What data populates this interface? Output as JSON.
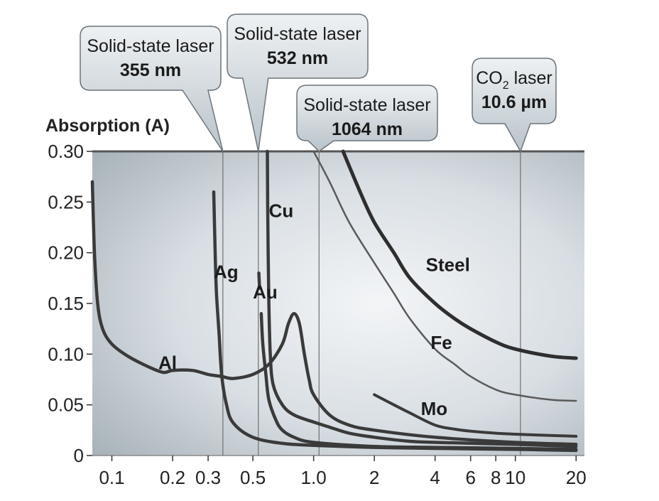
{
  "chart_data": {
    "type": "line",
    "ylabel": "Absorption (A)",
    "xlabel": "",
    "x_scale": "log",
    "xlim": [
      0.08,
      22
    ],
    "ylim": [
      0,
      0.3
    ],
    "x_ticks": [
      {
        "value": 0.1,
        "label": "0.1"
      },
      {
        "value": 0.2,
        "label": "0.2"
      },
      {
        "value": 0.3,
        "label": "0.3"
      },
      {
        "value": 0.5,
        "label": "0.5"
      },
      {
        "value": 1.0,
        "label": "1.0"
      },
      {
        "value": 2,
        "label": "2"
      },
      {
        "value": 4,
        "label": "4"
      },
      {
        "value": 6,
        "label": "6"
      },
      {
        "value": 8,
        "label": "8"
      },
      {
        "value": 10,
        "label": "10"
      },
      {
        "value": 20,
        "label": "20"
      }
    ],
    "y_ticks": [
      {
        "value": 0.3,
        "label": "0.30"
      },
      {
        "value": 0.25,
        "label": "0.25"
      },
      {
        "value": 0.2,
        "label": "0.20"
      },
      {
        "value": 0.15,
        "label": "0.15"
      },
      {
        "value": 0.1,
        "label": "0.10"
      },
      {
        "value": 0.05,
        "label": "0.05"
      },
      {
        "value": 0,
        "label": "0"
      }
    ],
    "series": [
      {
        "name": "Al",
        "stroke": "#3a3a3a",
        "width": 4.5,
        "points": [
          [
            0.08,
            0.27
          ],
          [
            0.082,
            0.2
          ],
          [
            0.085,
            0.15
          ],
          [
            0.09,
            0.125
          ],
          [
            0.1,
            0.11
          ],
          [
            0.12,
            0.098
          ],
          [
            0.15,
            0.088
          ],
          [
            0.18,
            0.082
          ],
          [
            0.2,
            0.084
          ],
          [
            0.25,
            0.084
          ],
          [
            0.3,
            0.08
          ],
          [
            0.35,
            0.078
          ],
          [
            0.4,
            0.076
          ],
          [
            0.5,
            0.08
          ],
          [
            0.6,
            0.09
          ],
          [
            0.7,
            0.11
          ],
          [
            0.75,
            0.13
          ],
          [
            0.8,
            0.14
          ],
          [
            0.85,
            0.13
          ],
          [
            0.9,
            0.1
          ],
          [
            0.95,
            0.075
          ],
          [
            1.0,
            0.06
          ],
          [
            1.2,
            0.04
          ],
          [
            1.5,
            0.03
          ],
          [
            2,
            0.025
          ],
          [
            4,
            0.018
          ],
          [
            10,
            0.013
          ],
          [
            20,
            0.011
          ]
        ]
      },
      {
        "name": "Ag",
        "stroke": "#3a3a3a",
        "width": 4.5,
        "points": [
          [
            0.32,
            0.26
          ],
          [
            0.325,
            0.2
          ],
          [
            0.33,
            0.16
          ],
          [
            0.34,
            0.12
          ],
          [
            0.35,
            0.08
          ],
          [
            0.37,
            0.05
          ],
          [
            0.4,
            0.032
          ],
          [
            0.5,
            0.018
          ],
          [
            0.7,
            0.012
          ],
          [
            1.0,
            0.01
          ],
          [
            2,
            0.008
          ],
          [
            4,
            0.007
          ],
          [
            10,
            0.006
          ],
          [
            20,
            0.005
          ]
        ]
      },
      {
        "name": "Au",
        "stroke": "#3a3a3a",
        "width": 4.5,
        "points": [
          [
            0.55,
            0.14
          ],
          [
            0.56,
            0.11
          ],
          [
            0.58,
            0.08
          ],
          [
            0.6,
            0.055
          ],
          [
            0.65,
            0.035
          ],
          [
            0.7,
            0.025
          ],
          [
            0.8,
            0.018
          ],
          [
            1.0,
            0.013
          ],
          [
            2,
            0.009
          ],
          [
            4,
            0.008
          ],
          [
            10,
            0.007
          ],
          [
            20,
            0.006
          ]
        ]
      },
      {
        "name": "Au-upper",
        "stroke": "#3a3a3a",
        "width": 4.5,
        "points": [
          [
            0.535,
            0.18
          ],
          [
            0.54,
            0.165
          ]
        ]
      },
      {
        "name": "Cu",
        "stroke": "#3a3a3a",
        "width": 4.5,
        "points": [
          [
            0.59,
            0.3
          ],
          [
            0.592,
            0.25
          ],
          [
            0.595,
            0.2
          ],
          [
            0.6,
            0.15
          ],
          [
            0.61,
            0.1
          ],
          [
            0.63,
            0.07
          ],
          [
            0.7,
            0.05
          ],
          [
            0.8,
            0.04
          ],
          [
            1.0,
            0.033
          ],
          [
            1.2,
            0.028
          ],
          [
            1.5,
            0.022
          ],
          [
            2,
            0.018
          ],
          [
            3,
            0.014
          ],
          [
            4,
            0.013
          ],
          [
            10,
            0.011
          ],
          [
            20,
            0.009
          ]
        ]
      },
      {
        "name": "Steel",
        "stroke": "#2e2e2e",
        "width": 5,
        "points": [
          [
            1.4,
            0.3
          ],
          [
            1.7,
            0.26
          ],
          [
            2,
            0.23
          ],
          [
            2.5,
            0.2
          ],
          [
            3,
            0.175
          ],
          [
            4,
            0.15
          ],
          [
            5,
            0.135
          ],
          [
            6,
            0.125
          ],
          [
            8,
            0.112
          ],
          [
            10,
            0.105
          ],
          [
            15,
            0.098
          ],
          [
            20,
            0.096
          ]
        ]
      },
      {
        "name": "Fe",
        "stroke": "#5a5a5a",
        "width": 2.5,
        "points": [
          [
            1.0,
            0.3
          ],
          [
            1.2,
            0.27
          ],
          [
            1.5,
            0.23
          ],
          [
            2,
            0.19
          ],
          [
            2.5,
            0.16
          ],
          [
            3,
            0.135
          ],
          [
            4,
            0.105
          ],
          [
            5,
            0.09
          ],
          [
            6,
            0.078
          ],
          [
            8,
            0.065
          ],
          [
            10,
            0.06
          ],
          [
            15,
            0.055
          ],
          [
            20,
            0.054
          ]
        ]
      },
      {
        "name": "Mo",
        "stroke": "#3a3a3a",
        "width": 4,
        "points": [
          [
            2.0,
            0.06
          ],
          [
            2.5,
            0.05
          ],
          [
            3,
            0.042
          ],
          [
            4,
            0.03
          ],
          [
            5,
            0.026
          ],
          [
            6,
            0.024
          ],
          [
            8,
            0.022
          ],
          [
            10,
            0.021
          ],
          [
            20,
            0.019
          ]
        ]
      }
    ],
    "curve_labels": [
      {
        "text": "Al",
        "x": 0.17,
        "y": 0.085
      },
      {
        "text": "Ag",
        "x": 0.32,
        "y": 0.175
      },
      {
        "text": "Au",
        "x": 0.5,
        "y": 0.155
      },
      {
        "text": "Cu",
        "x": 0.6,
        "y": 0.235
      },
      {
        "text": "Steel",
        "x": 3.6,
        "y": 0.182
      },
      {
        "text": "Fe",
        "x": 3.8,
        "y": 0.105
      },
      {
        "text": "Mo",
        "x": 3.4,
        "y": 0.04
      }
    ],
    "laser_lines": [
      {
        "x": 0.355,
        "line1": "Solid-state laser",
        "line2": "355 nm"
      },
      {
        "x": 0.532,
        "line1": "Solid-state laser",
        "line2": "532 nm"
      },
      {
        "x": 1.064,
        "line1": "Solid-state laser",
        "line2": "1064 nm"
      },
      {
        "x": 10.6,
        "line1": "CO",
        "line1_sub": "2",
        "line1_rest": " laser",
        "line2": "10.6 µm"
      }
    ]
  }
}
